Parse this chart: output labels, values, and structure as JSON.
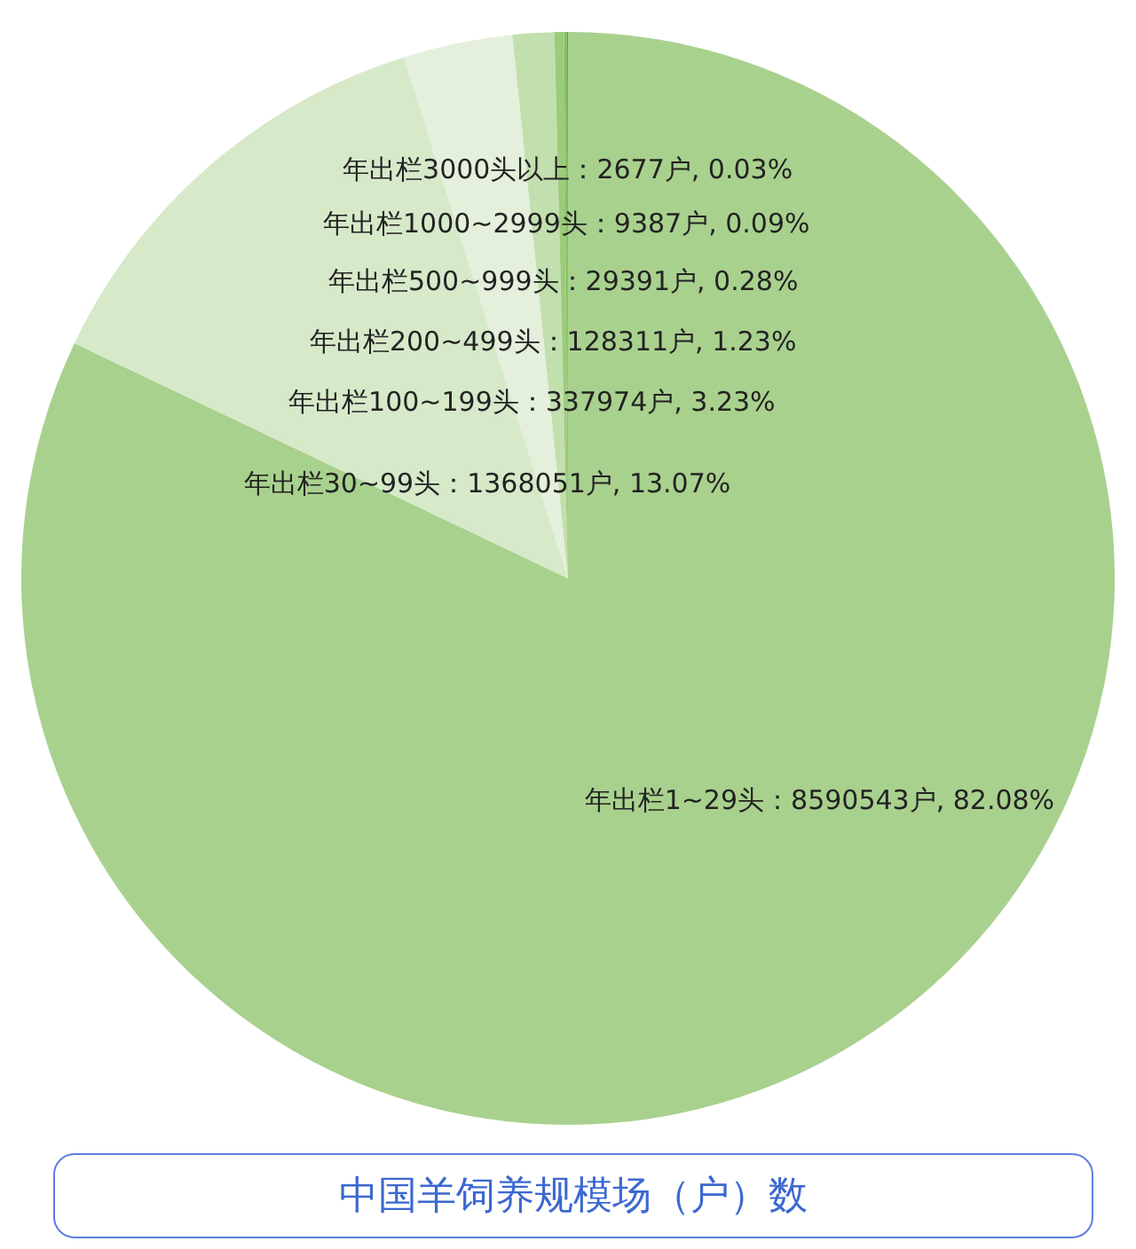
{
  "chart_data": {
    "type": "pie",
    "title": "中国羊饲养规模场（户）数",
    "categories": [
      "年出栏1~29头",
      "年出栏30~99头",
      "年出栏100~199头",
      "年出栏200~499头",
      "年出栏500~999头",
      "年出栏1000~2999头",
      "年出栏3000头以上"
    ],
    "values": [
      8590543,
      1368051,
      337974,
      128311,
      29391,
      9387,
      2677
    ],
    "colors": [
      "#a9d18e",
      "#d6e9c9",
      "#e4f0db",
      "#c2dfae",
      "#9ccb7c",
      "#84c05e",
      "#5ca93a"
    ],
    "value_labels": [
      "：8590543户, 82.08%",
      "：1368051户, 13.07%",
      "：337974户, 3.23%",
      "：128311户, 1.23%",
      "：29391户, 0.28%",
      "：9387户, 0.09%",
      "：2677户, 0.03%"
    ]
  }
}
